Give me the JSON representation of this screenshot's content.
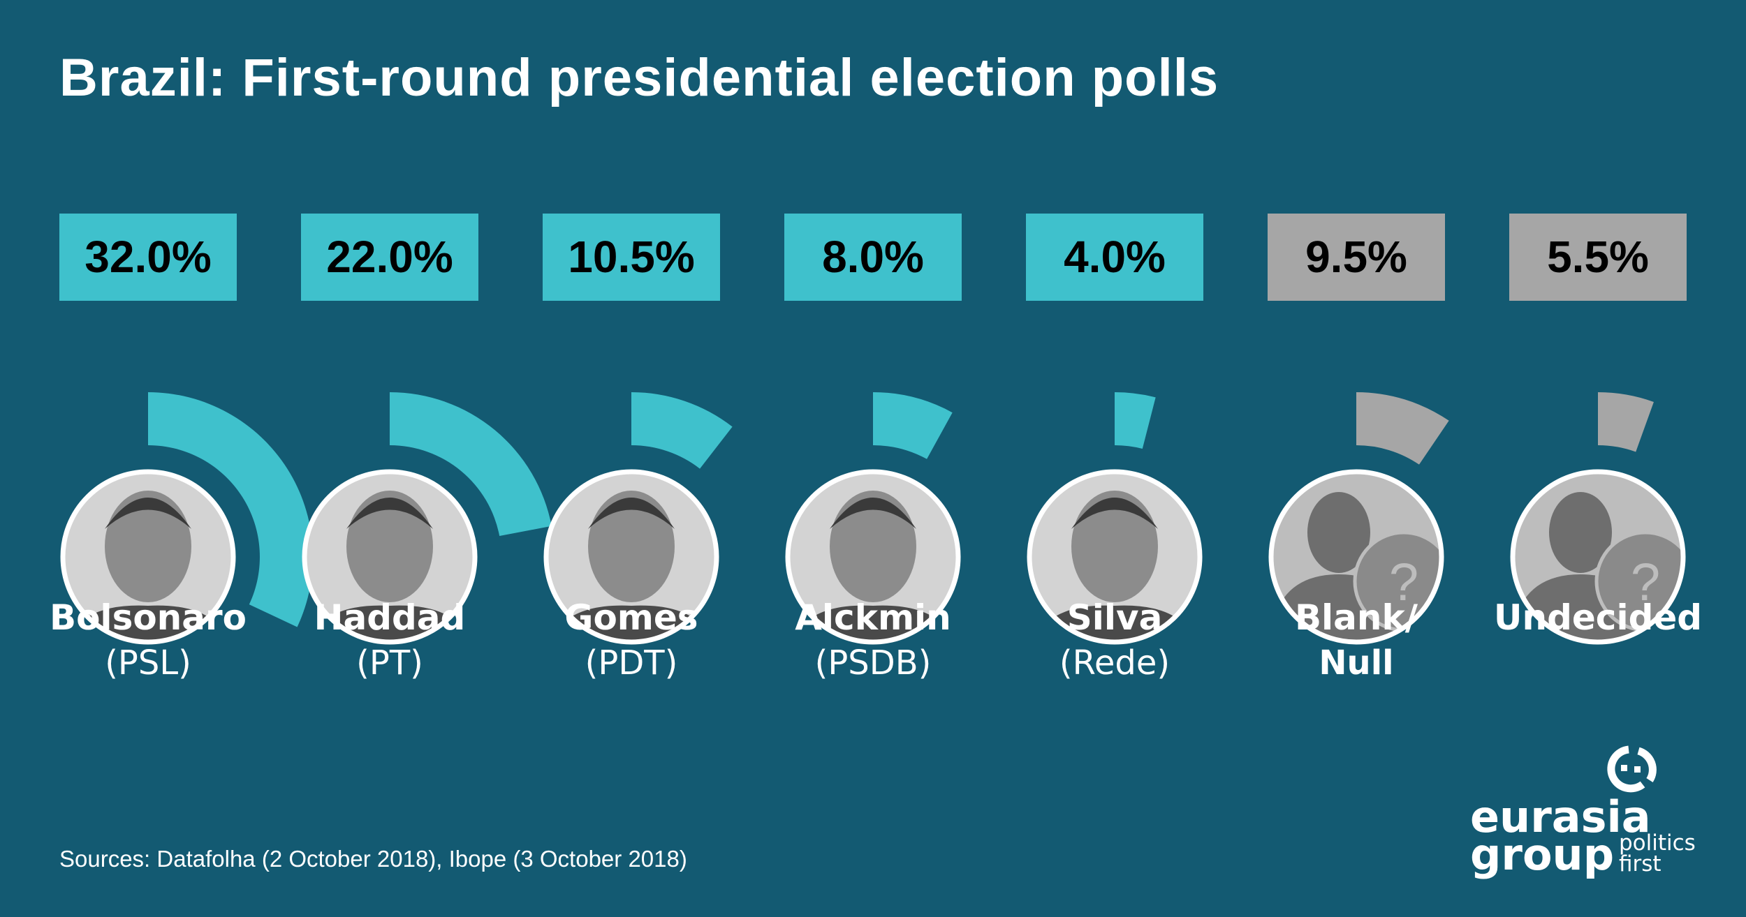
{
  "chart_data": {
    "type": "bar",
    "title": "Brazil: First-round presidential election polls",
    "categories": [
      "Bolsonaro",
      "Haddad",
      "Gomes",
      "Alckmin",
      "Silva",
      "Blank/",
      "Undecided"
    ],
    "category_sublabels": [
      "(PSL)",
      "(PT)",
      "(PDT)",
      "(PSDB)",
      "(Rede)",
      "Null",
      ""
    ],
    "values": [
      32.0,
      22.0,
      10.5,
      8.0,
      4.0,
      9.5,
      5.5
    ],
    "value_labels": [
      "32.0%",
      "22.0%",
      "10.5%",
      "8.0%",
      "4.0%",
      "9.5%",
      "5.5%"
    ],
    "unit": "%",
    "encoding": "radial arc around portrait, full circle = 100%",
    "series_colors": [
      "#3fc1cc",
      "#3fc1cc",
      "#3fc1cc",
      "#3fc1cc",
      "#3fc1cc",
      "#a6a6a6",
      "#a6a6a6"
    ],
    "placeholder_portrait": [
      false,
      false,
      false,
      false,
      false,
      true,
      true
    ],
    "grid": false
  },
  "source": "Sources: Datafolha (2 October 2018), Ibope (3 October 2018)",
  "logo": {
    "line1": "eurasia",
    "line2": "group",
    "tag1": "politics",
    "tag2": "first"
  },
  "colors": {
    "background": "#135a72",
    "candidate": "#3fc1cc",
    "other": "#a6a6a6",
    "text": "#ffffff"
  }
}
